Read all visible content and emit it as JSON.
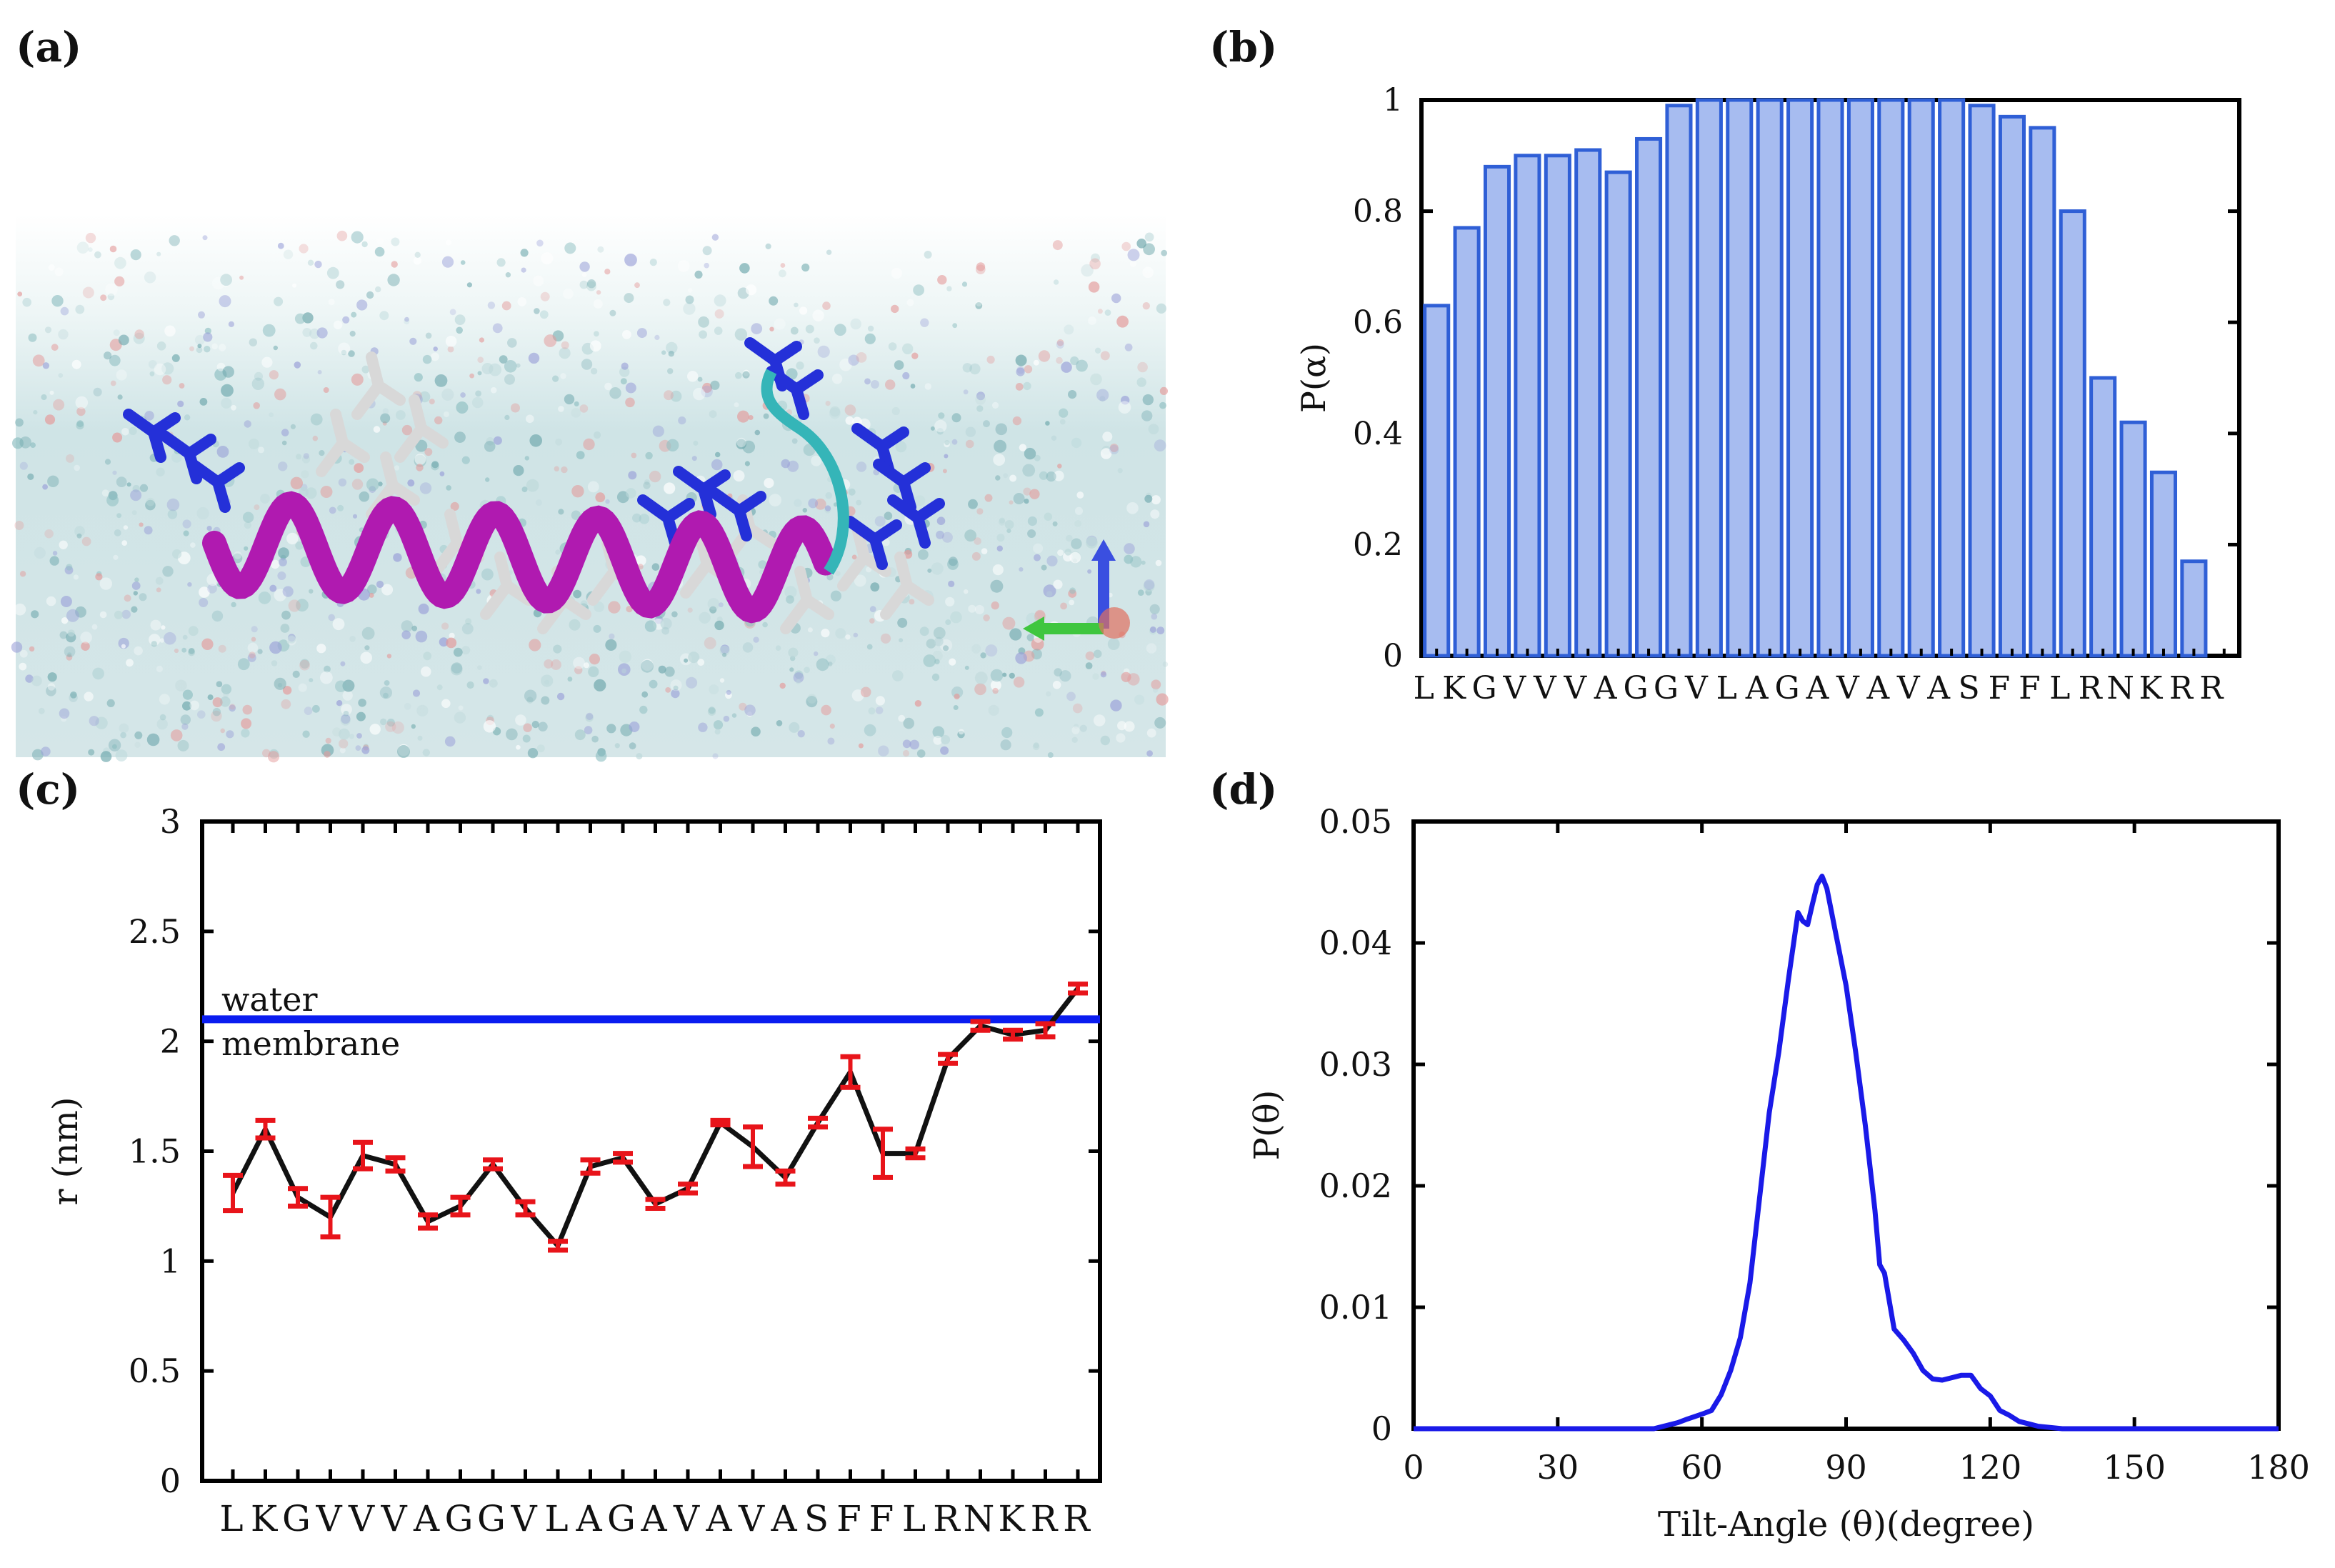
{
  "panels": {
    "a": {
      "label": "(a)"
    },
    "b": {
      "label": "(b)"
    },
    "c": {
      "label": "(c)"
    },
    "d": {
      "label": "(d)"
    }
  },
  "colors": {
    "bar_fill": "#a7bcf0",
    "bar_stroke": "#2f5fd6",
    "boundary_line": "#0a1cf0",
    "error_bar": "#e8141a",
    "profile_line": "#111111",
    "tilt_line": "#1a1ae8",
    "helix": "#b01ab0",
    "helix_tail": "#35b5b8",
    "basic_residues": "#2430d8",
    "side_chains": "#d8d8d8"
  },
  "chart_data": [
    {
      "id": "b",
      "type": "bar",
      "categories": [
        "L",
        "K",
        "G",
        "V",
        "V",
        "V",
        "A",
        "G",
        "G",
        "V",
        "L",
        "A",
        "G",
        "A",
        "V",
        "A",
        "V",
        "A",
        "S",
        "F",
        "F",
        "L",
        "R",
        "N",
        "K",
        "R",
        "R"
      ],
      "values": [
        0.63,
        0.77,
        0.88,
        0.9,
        0.9,
        0.91,
        0.87,
        0.93,
        0.99,
        1.0,
        1.0,
        1.0,
        1.0,
        1.0,
        1.0,
        1.0,
        1.0,
        1.0,
        0.99,
        0.97,
        0.95,
        0.8,
        0.5,
        0.42,
        0.33,
        0.17,
        0.0
      ],
      "title": "",
      "xlabel": "",
      "ylabel": "P(α)",
      "ylim": [
        0,
        1
      ],
      "yticks": [
        "0",
        "0.2",
        "0.4",
        "0.6",
        "0.8",
        "1"
      ]
    },
    {
      "id": "c",
      "type": "line",
      "categories": [
        "L",
        "K",
        "G",
        "V",
        "V",
        "V",
        "A",
        "G",
        "G",
        "V",
        "L",
        "A",
        "G",
        "A",
        "V",
        "A",
        "V",
        "A",
        "S",
        "F",
        "F",
        "L",
        "R",
        "N",
        "K",
        "R",
        "R"
      ],
      "values": [
        1.31,
        1.6,
        1.29,
        1.2,
        1.48,
        1.44,
        1.18,
        1.25,
        1.44,
        1.24,
        1.07,
        1.43,
        1.47,
        1.26,
        1.33,
        1.63,
        1.52,
        1.38,
        1.63,
        1.86,
        1.49,
        1.49,
        1.92,
        2.07,
        2.03,
        2.05,
        2.24
      ],
      "errors": [
        0.08,
        0.04,
        0.04,
        0.09,
        0.06,
        0.03,
        0.03,
        0.04,
        0.02,
        0.03,
        0.02,
        0.03,
        0.02,
        0.02,
        0.02,
        0.01,
        0.09,
        0.03,
        0.02,
        0.07,
        0.11,
        0.02,
        0.02,
        0.02,
        0.02,
        0.03,
        0.02
      ],
      "hline": {
        "y": 2.1,
        "label_above": "water",
        "label_below": "membrane"
      },
      "title": "",
      "xlabel": "",
      "ylabel": "r (nm)",
      "ylim": [
        0,
        3
      ],
      "yticks": [
        "0",
        "0.5",
        "1",
        "1.5",
        "2",
        "2.5",
        "3"
      ]
    },
    {
      "id": "d",
      "type": "line",
      "series": [
        {
          "name": "P(θ)",
          "x": [
            0,
            50,
            52,
            55,
            57,
            60,
            62,
            64,
            66,
            68,
            70,
            72,
            74,
            76,
            78,
            80,
            81,
            82,
            83,
            84,
            85,
            86,
            88,
            90,
            92,
            94,
            96,
            97,
            98,
            100,
            102,
            104,
            106,
            108,
            110,
            112,
            114,
            116,
            118,
            120,
            122,
            124,
            126,
            128,
            130,
            135,
            180
          ],
          "y": [
            0,
            0,
            0.0002,
            0.0005,
            0.0008,
            0.0012,
            0.0015,
            0.0028,
            0.0048,
            0.0075,
            0.012,
            0.019,
            0.026,
            0.031,
            0.037,
            0.0425,
            0.0418,
            0.0415,
            0.0432,
            0.0448,
            0.0455,
            0.0445,
            0.0405,
            0.0365,
            0.031,
            0.025,
            0.018,
            0.0135,
            0.0128,
            0.0082,
            0.0073,
            0.0062,
            0.0048,
            0.0041,
            0.004,
            0.0042,
            0.0044,
            0.0044,
            0.0033,
            0.0027,
            0.0015,
            0.0011,
            0.0006,
            0.0004,
            0.0002,
            0,
            0
          ]
        }
      ],
      "title": "",
      "xlabel": "Tilt-Angle (θ)(degree)",
      "ylabel": "P(θ)",
      "xlim": [
        0,
        180
      ],
      "ylim": [
        0,
        0.05
      ],
      "xticks": [
        "0",
        "30",
        "60",
        "90",
        "120",
        "150",
        "180"
      ],
      "yticks": [
        "0",
        "0.01",
        "0.02",
        "0.03",
        "0.04",
        "0.05"
      ]
    }
  ]
}
